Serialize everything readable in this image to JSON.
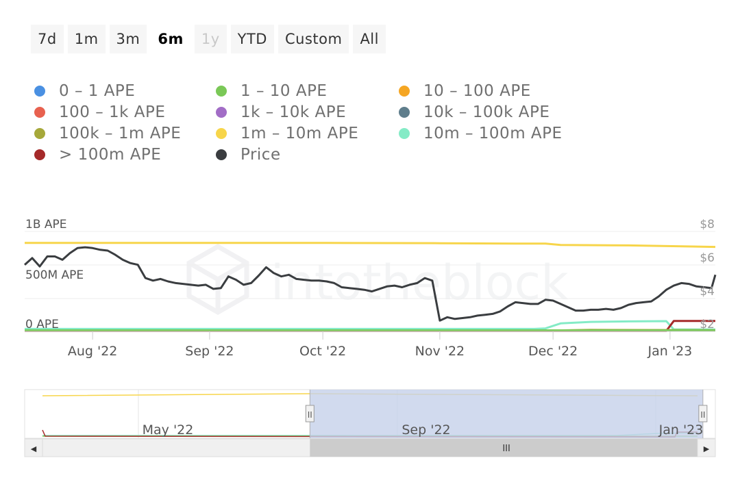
{
  "range_selector": {
    "buttons": [
      {
        "label": "7d",
        "state": "normal"
      },
      {
        "label": "1m",
        "state": "normal"
      },
      {
        "label": "3m",
        "state": "normal"
      },
      {
        "label": "6m",
        "state": "selected"
      },
      {
        "label": "1y",
        "state": "disabled"
      },
      {
        "label": "YTD",
        "state": "normal"
      },
      {
        "label": "Custom",
        "state": "normal"
      },
      {
        "label": "All",
        "state": "normal"
      }
    ]
  },
  "watermark": "intotheblock",
  "chart_data": {
    "type": "line",
    "legend": [
      {
        "name": "0 – 1 APE",
        "color": "#4a90e2"
      },
      {
        "name": "1 – 10 APE",
        "color": "#7ac857"
      },
      {
        "name": "10 – 100 APE",
        "color": "#f5a623"
      },
      {
        "name": "100 – 1k APE",
        "color": "#e8614f"
      },
      {
        "name": "1k – 10k APE",
        "color": "#a26dc6"
      },
      {
        "name": "10k – 100k APE",
        "color": "#5f7e8c"
      },
      {
        "name": "100k – 1m APE",
        "color": "#a6a83a"
      },
      {
        "name": "1m – 10m APE",
        "color": "#f7d54a"
      },
      {
        "name": "10m – 100m APE",
        "color": "#84ebc6"
      },
      {
        "name": "> 100m APE",
        "color": "#a52a2a"
      },
      {
        "name": "Price",
        "color": "#3a3d40"
      }
    ],
    "x_ticks": [
      "Aug '22",
      "Sep '22",
      "Oct '22",
      "Nov '22",
      "Dec '22",
      "Jan '23"
    ],
    "y_left_ticks": [
      "1B APE",
      "500M APE",
      "0 APE"
    ],
    "y_right_ticks": [
      "$8",
      "$6",
      "$4",
      "$2"
    ],
    "y_left_range": [
      0,
      1000000000
    ],
    "y_right_range": [
      2,
      8
    ],
    "x_range_days": [
      0,
      183
    ],
    "tick_days": [
      18,
      49,
      79,
      110,
      140,
      171
    ],
    "series": [
      {
        "name": "1m – 10m APE",
        "axis": "left",
        "x": [
          0,
          40,
          80,
          110,
          130,
          138,
          142,
          160,
          183
        ],
        "y": [
          885000000,
          885000000,
          885000000,
          882000000,
          878000000,
          878000000,
          865000000,
          860000000,
          845000000
        ]
      },
      {
        "name": "10m – 100m APE",
        "axis": "left",
        "x": [
          0,
          60,
          100,
          135,
          138,
          142,
          150,
          160,
          170,
          172,
          183
        ],
        "y": [
          25000000,
          25000000,
          25000000,
          25000000,
          30000000,
          80000000,
          95000000,
          100000000,
          103000000,
          20000000,
          20000000
        ]
      },
      {
        "name": "> 100m APE",
        "axis": "left",
        "x": [
          0,
          170,
          172,
          183
        ],
        "y": [
          5000000,
          5000000,
          105000000,
          105000000
        ]
      },
      {
        "name": "100k – 1m APE",
        "axis": "left",
        "x": [
          0,
          140,
          150,
          183
        ],
        "y": [
          8000000,
          8000000,
          15000000,
          12000000
        ]
      },
      {
        "name": "1 – 10 APE",
        "axis": "left",
        "x": [
          0,
          183
        ],
        "y": [
          10000000,
          10000000
        ]
      },
      {
        "name": "Price",
        "axis": "right",
        "x": [
          0,
          2,
          4,
          6,
          8,
          10,
          12,
          14,
          16,
          18,
          20,
          22,
          24,
          26,
          28,
          30,
          32,
          34,
          36,
          38,
          40,
          42,
          44,
          46,
          48,
          50,
          52,
          54,
          56,
          58,
          60,
          62,
          64,
          66,
          68,
          70,
          72,
          74,
          76,
          78,
          80,
          82,
          84,
          86,
          88,
          90,
          92,
          94,
          96,
          98,
          100,
          102,
          104,
          106,
          108,
          110,
          112,
          114,
          116,
          118,
          120,
          122,
          124,
          126,
          128,
          130,
          132,
          134,
          136,
          138,
          140,
          142,
          144,
          146,
          148,
          150,
          152,
          154,
          156,
          158,
          160,
          162,
          164,
          166,
          168,
          170,
          172,
          174,
          176,
          178,
          180,
          182,
          183
        ],
        "y": [
          6.0,
          6.4,
          5.9,
          6.5,
          6.5,
          6.3,
          6.7,
          7.0,
          7.05,
          7.0,
          6.9,
          6.85,
          6.6,
          6.3,
          6.1,
          6.0,
          5.2,
          5.05,
          5.15,
          5.0,
          4.9,
          4.85,
          4.8,
          4.75,
          4.8,
          4.55,
          4.6,
          5.3,
          5.1,
          4.8,
          4.9,
          5.35,
          5.85,
          5.5,
          5.3,
          5.4,
          5.15,
          5.1,
          5.05,
          5.05,
          5.0,
          4.9,
          4.65,
          4.6,
          4.55,
          4.5,
          4.4,
          4.55,
          4.7,
          4.75,
          4.65,
          4.8,
          4.9,
          5.2,
          5.05,
          2.65,
          2.85,
          2.75,
          2.8,
          2.85,
          2.95,
          3.0,
          3.05,
          3.2,
          3.5,
          3.75,
          3.7,
          3.65,
          3.65,
          3.9,
          3.85,
          3.65,
          3.45,
          3.25,
          3.25,
          3.3,
          3.3,
          3.35,
          3.3,
          3.4,
          3.6,
          3.7,
          3.75,
          3.8,
          4.1,
          4.5,
          4.75,
          4.9,
          4.85,
          4.7,
          4.65,
          4.6,
          5.4
        ]
      }
    ]
  },
  "navigator": {
    "labels": [
      "May '22",
      "Sep '22",
      "Jan '23"
    ],
    "selection_range": [
      0.413,
      0.982
    ],
    "scroll_thumb_glyph": "III",
    "left_arrow": "◀",
    "right_arrow": "▶",
    "handle_glyph": "II"
  }
}
